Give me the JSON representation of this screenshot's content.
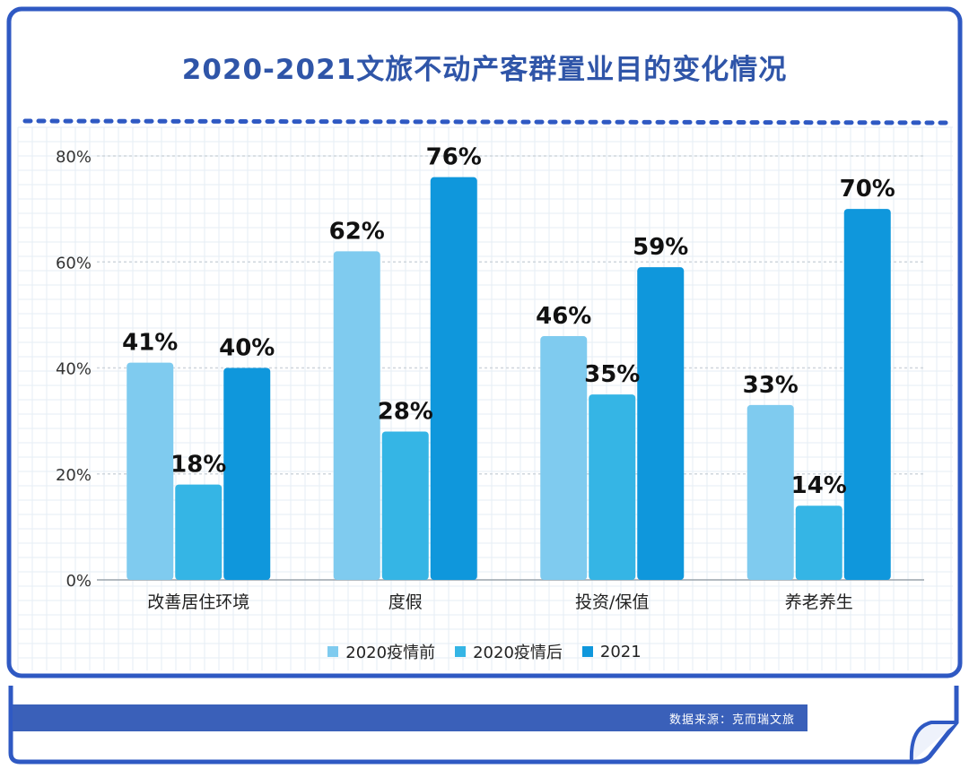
{
  "title": "2020-2021文旅不动产客群置业目的变化情况",
  "source": "数据来源：克而瑞文旅",
  "colors": {
    "frame": "#2f59c3",
    "title": "#2f55a8",
    "series": [
      "#7fcbef",
      "#35b5e5",
      "#0f97dc"
    ]
  },
  "legend": [
    {
      "label": "2020疫情前",
      "color": "#7fcbef"
    },
    {
      "label": "2020疫情后",
      "color": "#35b5e5"
    },
    {
      "label": "2021",
      "color": "#0f97dc"
    }
  ],
  "chart_data": {
    "type": "bar",
    "title": "2020-2021文旅不动产客群置业目的变化情况",
    "categories": [
      "改善居住环境",
      "度假",
      "投资/保值",
      "养老养生"
    ],
    "series": [
      {
        "name": "2020疫情前",
        "values": [
          41,
          62,
          46,
          33
        ]
      },
      {
        "name": "2020疫情后",
        "values": [
          18,
          28,
          35,
          14
        ]
      },
      {
        "name": "2021",
        "values": [
          40,
          76,
          59,
          70
        ]
      }
    ],
    "data_labels": [
      [
        "41%",
        "62%",
        "46%",
        "33%"
      ],
      [
        "18%",
        "28%",
        "35%",
        "14%"
      ],
      [
        "40%",
        "76%",
        "59%",
        "70%"
      ]
    ],
    "yticks": [
      "0%",
      "20%",
      "40%",
      "60%",
      "80%"
    ],
    "ytick_values": [
      0,
      20,
      40,
      60,
      80
    ],
    "ylim": [
      0,
      80
    ],
    "xlabel": "",
    "ylabel": "",
    "grid": true,
    "legend_position": "bottom"
  }
}
